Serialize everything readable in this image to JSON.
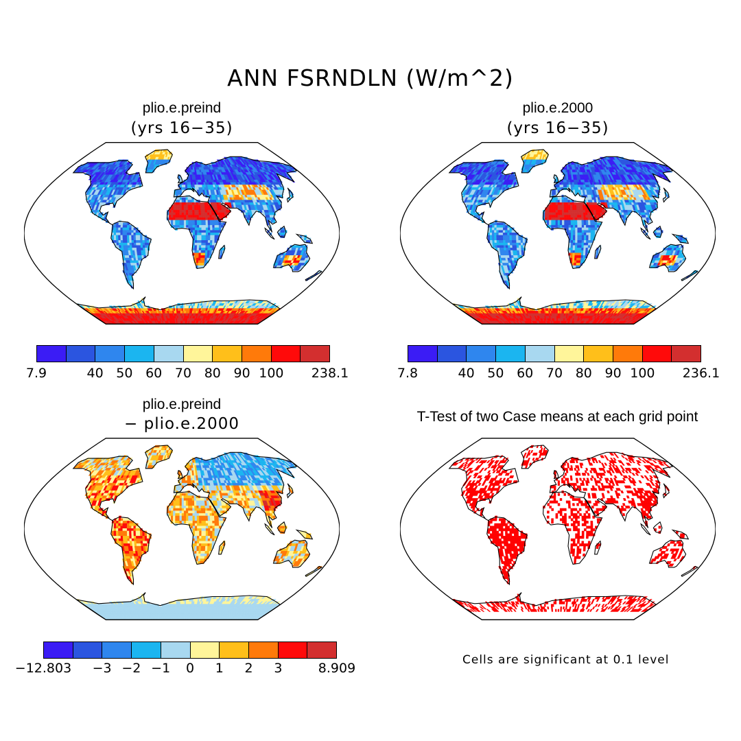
{
  "title": "ANN FSRNDLN (W/m^2)",
  "panels": [
    {
      "id": "preind",
      "title": "plio.e.preind",
      "subtitle": "(yrs 16−35)",
      "colorbar": {
        "labels": [
          "7.9",
          "40",
          "50",
          "60",
          "70",
          "80",
          "90",
          "100",
          "238.1"
        ],
        "colors": [
          "#3b1cf5",
          "#2b55e0",
          "#2f86ee",
          "#1bb5f0",
          "#a8d8f0",
          "#fff59a",
          "#ffbf1a",
          "#ff7a0a",
          "#ff0a0a",
          "#d32f2f"
        ]
      }
    },
    {
      "id": "y2000",
      "title": "plio.e.2000",
      "subtitle": "(yrs 16−35)",
      "colorbar": {
        "labels": [
          "7.8",
          "40",
          "50",
          "60",
          "70",
          "80",
          "90",
          "100",
          "236.1"
        ],
        "colors": [
          "#3b1cf5",
          "#2b55e0",
          "#2f86ee",
          "#1bb5f0",
          "#a8d8f0",
          "#fff59a",
          "#ffbf1a",
          "#ff7a0a",
          "#ff0a0a",
          "#d32f2f"
        ]
      }
    },
    {
      "id": "diff",
      "title": "plio.e.preind",
      "subtitle": "− plio.e.2000",
      "colorbar": {
        "labels": [
          "−12.803",
          "−3",
          "−2",
          "−1",
          "0",
          "1",
          "2",
          "3",
          "8.909"
        ],
        "colors": [
          "#3b1cf5",
          "#2b55e0",
          "#2f86ee",
          "#1bb5f0",
          "#a8d8f0",
          "#fff59a",
          "#ffbf1a",
          "#ff7a0a",
          "#ff0a0a",
          "#d32f2f"
        ]
      }
    },
    {
      "id": "ttest",
      "title": "T-Test of two Case means at each grid point",
      "note": "Cells are significant at 0.1 level",
      "sig_color": "#ff0000"
    }
  ]
}
